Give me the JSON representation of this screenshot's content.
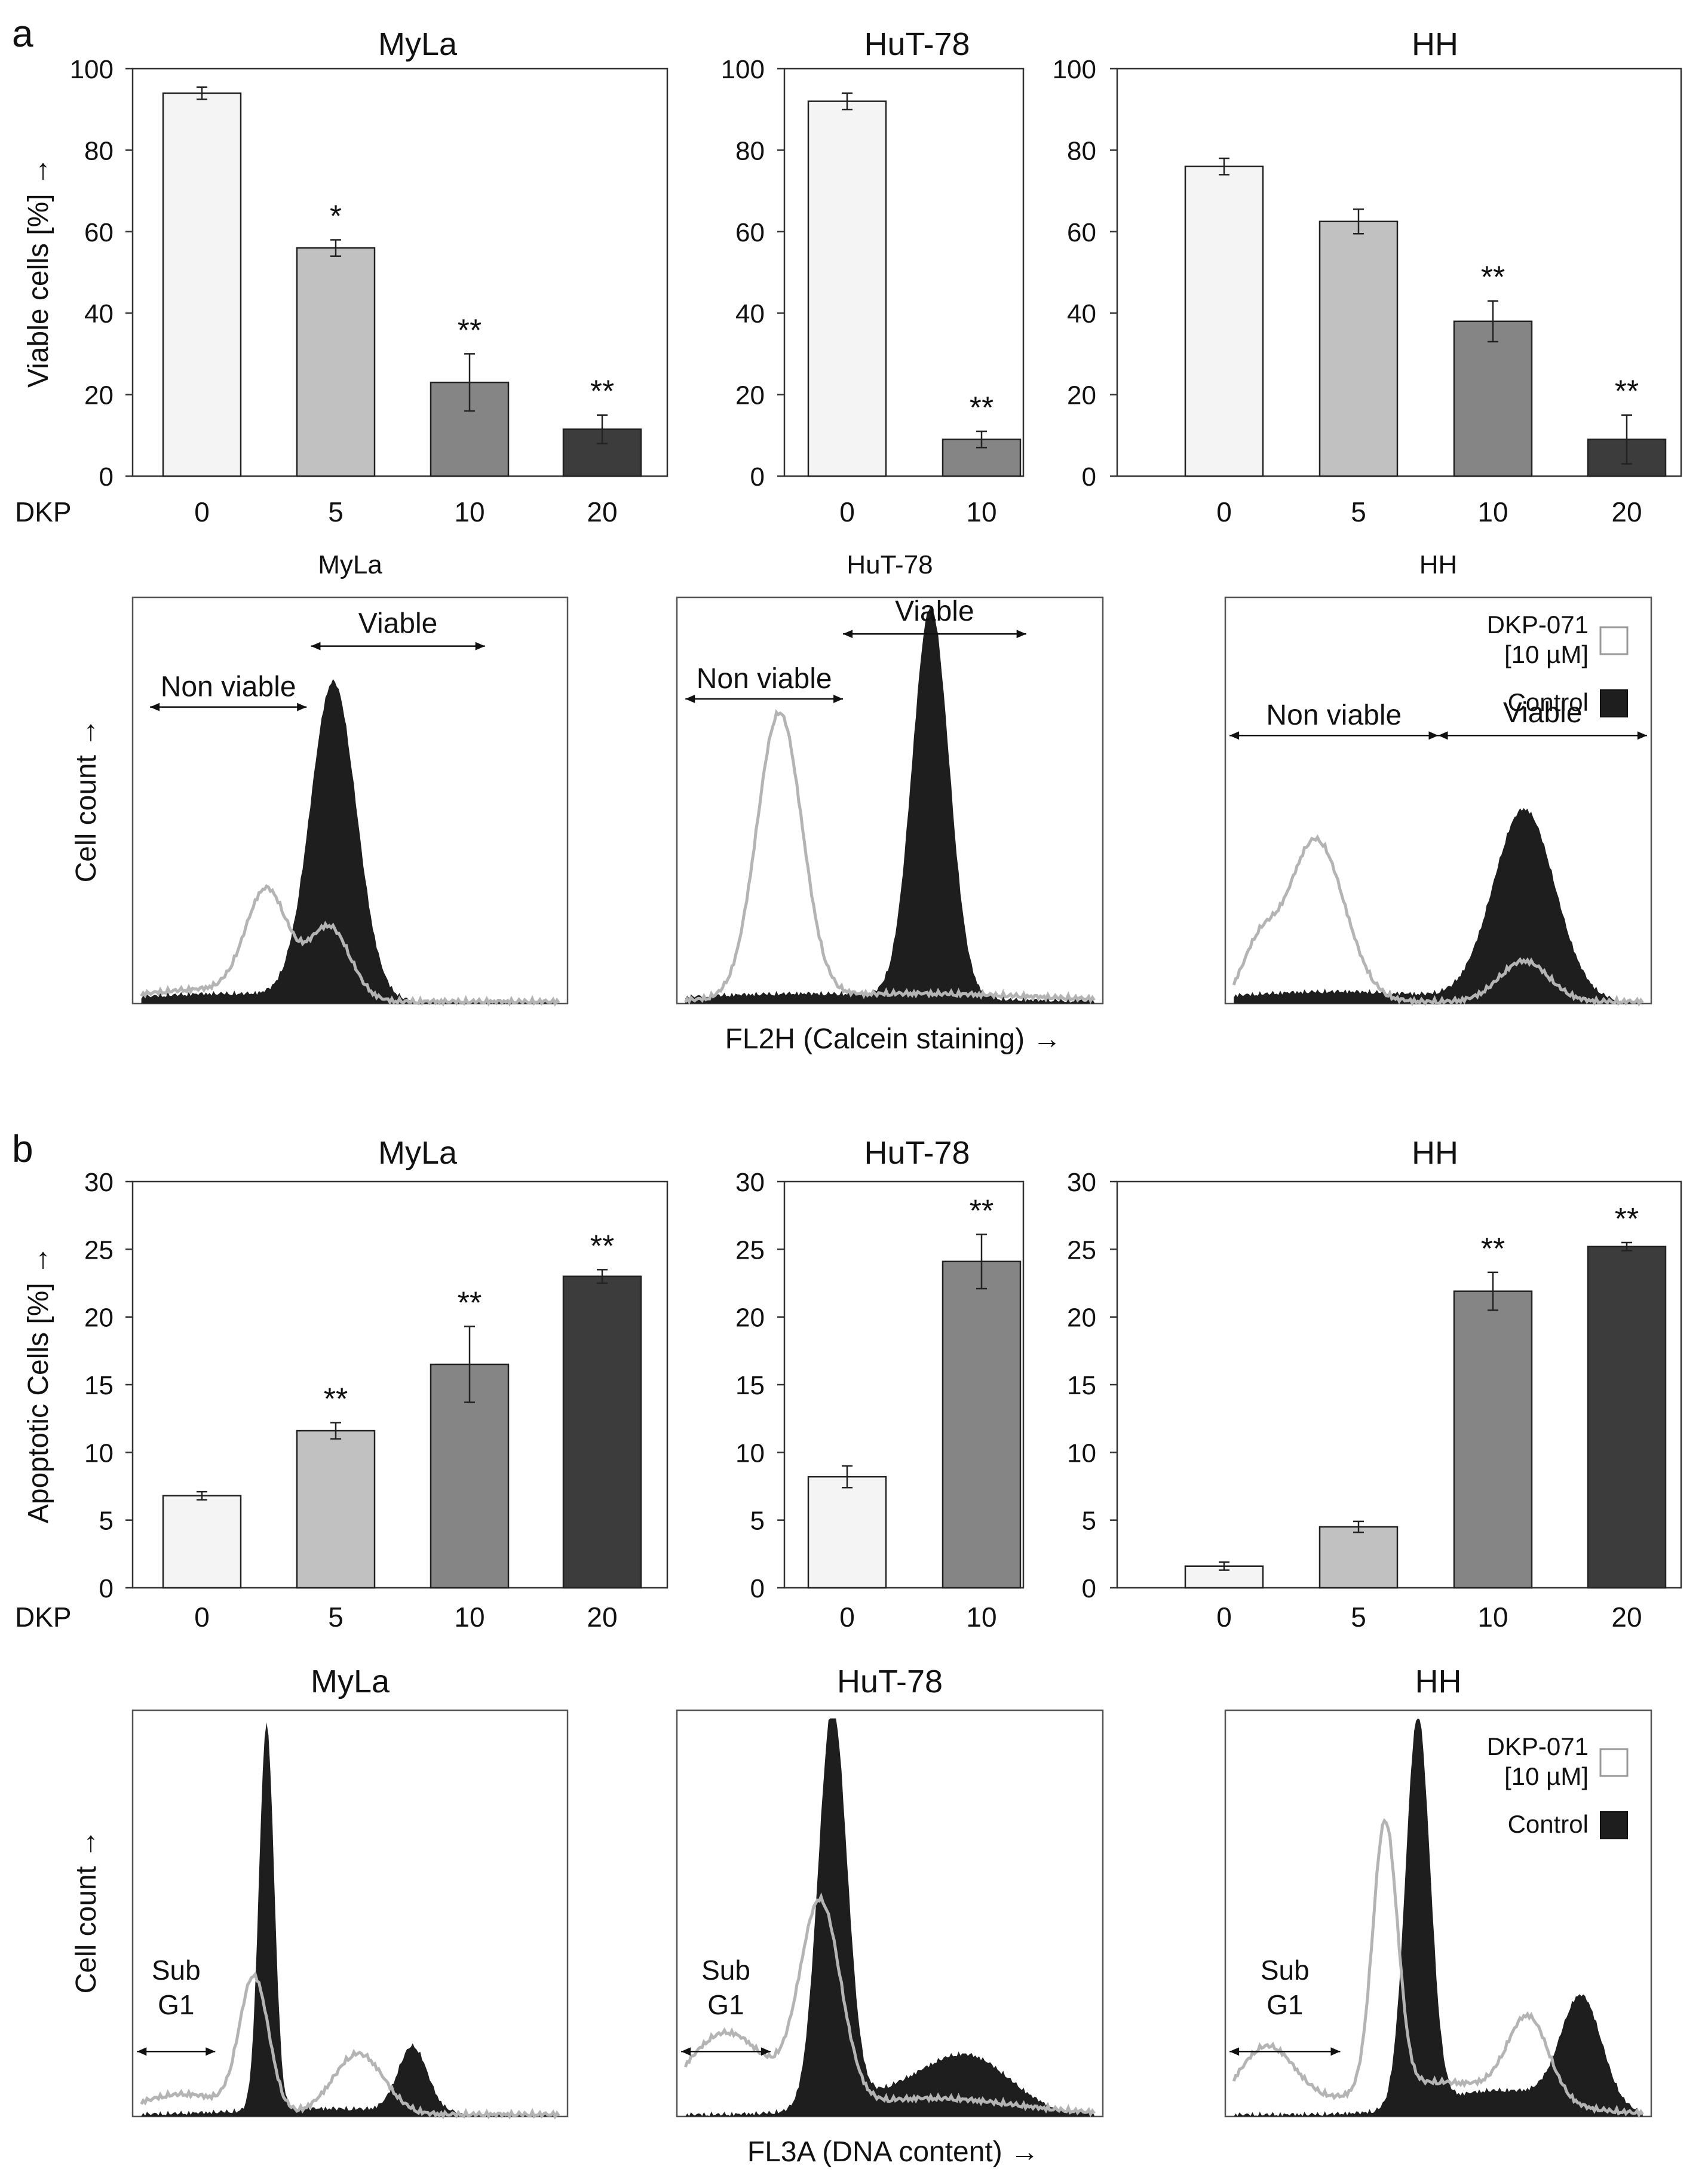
{
  "chart_data": {
    "type": "bar",
    "colors": {
      "bar_0": "#f4f4f4",
      "bar_5": "#c1c1c1",
      "bar_10": "#858585",
      "bar_20": "#3c3c3c",
      "histogram_control": "#1e1e1e",
      "histogram_treated": "#b4b4b4"
    },
    "panels": [
      {
        "letter": "a",
        "ylabel": "Viable cells [%] →",
        "xlabel": "DKP",
        "yticks": [
          "0",
          "20",
          "40",
          "60",
          "80",
          "100"
        ],
        "ylim": [
          0,
          100
        ],
        "charts": [
          {
            "title": "MyLa",
            "categories": [
              "0",
              "5",
              "10",
              "20"
            ],
            "values": [
              94,
              56,
              23,
              11.5
            ],
            "errors": [
              1.5,
              2,
              7,
              3.5
            ],
            "annotations": [
              "",
              "*",
              "**",
              "**"
            ]
          },
          {
            "title": "HuT-78",
            "categories": [
              "0",
              "10"
            ],
            "values": [
              92,
              9
            ],
            "errors": [
              2,
              2
            ],
            "annotations": [
              "",
              "**"
            ]
          },
          {
            "title": "HH",
            "categories": [
              "0",
              "5",
              "10",
              "20"
            ],
            "values": [
              76,
              62.5,
              38,
              9
            ],
            "errors": [
              2,
              3,
              5,
              6
            ],
            "annotations": [
              "",
              "",
              "**",
              "**"
            ]
          }
        ],
        "histograms": {
          "ylabel": "Cell count →",
          "xlabel": "FL2H (Calcein staining) →",
          "titles": [
            "MyLa",
            "HuT-78",
            "HH"
          ],
          "region_labels": [
            [
              "Non viable",
              "Viable"
            ],
            [
              "Non viable",
              "Viable"
            ],
            [
              "Non viable",
              "Viable"
            ]
          ],
          "legend": {
            "treated": [
              "DKP-071",
              "[10 µM]"
            ],
            "control": "Control"
          }
        }
      },
      {
        "letter": "b",
        "ylabel": "Apoptotic Cells [%] →",
        "xlabel": "DKP",
        "yticks": [
          "0",
          "5",
          "10",
          "15",
          "20",
          "25",
          "30"
        ],
        "ylim": [
          0,
          30
        ],
        "charts": [
          {
            "title": "MyLa",
            "categories": [
              "0",
              "5",
              "10",
              "20"
            ],
            "values": [
              6.8,
              11.6,
              16.5,
              23
            ],
            "errors": [
              0.3,
              0.6,
              2.8,
              0.5
            ],
            "annotations": [
              "",
              "**",
              "**",
              "**"
            ]
          },
          {
            "title": "HuT-78",
            "categories": [
              "0",
              "10"
            ],
            "values": [
              8.2,
              24.1
            ],
            "errors": [
              0.8,
              2
            ],
            "annotations": [
              "",
              "**"
            ]
          },
          {
            "title": "HH",
            "categories": [
              "0",
              "5",
              "10",
              "20"
            ],
            "values": [
              1.6,
              4.5,
              21.9,
              25.2
            ],
            "errors": [
              0.3,
              0.4,
              1.4,
              0.3
            ],
            "annotations": [
              "",
              "",
              "**",
              "**"
            ]
          }
        ],
        "histograms": {
          "ylabel": "Cell count →",
          "xlabel": "FL3A (DNA content) →",
          "titles": [
            "MyLa",
            "HuT-78",
            "HH"
          ],
          "region_labels": [
            [
              "Sub",
              "G1"
            ],
            [
              "Sub",
              "G1"
            ],
            [
              "Sub",
              "G1"
            ]
          ],
          "legend": {
            "treated": [
              "DKP-071",
              "[10 µM]"
            ],
            "control": "Control"
          }
        }
      }
    ]
  }
}
